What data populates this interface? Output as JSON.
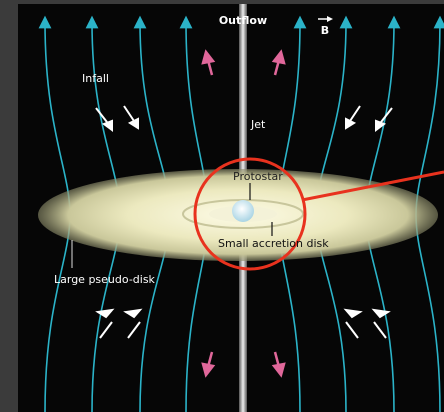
{
  "labels": {
    "outflow": "Outflow",
    "b": "B",
    "infall": "Infall",
    "jet": "Jet",
    "protostar": "Protostar",
    "small_disk": "Small accretion disk",
    "large_disk": "Large pseudo-disk"
  }
}
